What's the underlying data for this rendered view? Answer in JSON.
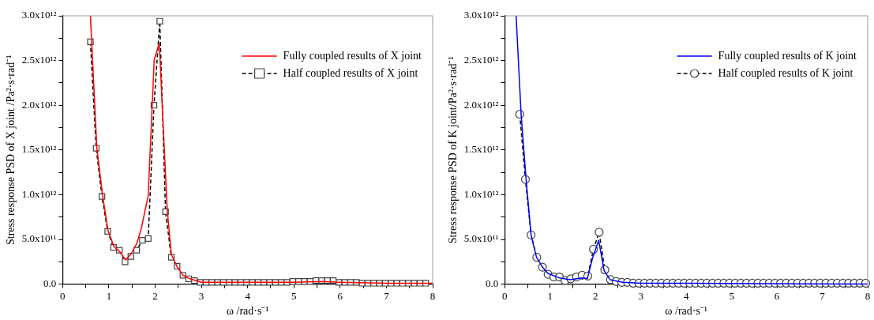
{
  "chart_data": [
    {
      "type": "line",
      "xlabel": "ω /rad·s⁻¹",
      "ylabel": "Stress response PSD of X joint /Pa²·s·rad⁻¹",
      "legend": "top right",
      "grid": false,
      "xlim": [
        0,
        8
      ],
      "xticks": [
        0,
        {
          "value": 0.5,
          "label": null
        },
        1,
        {
          "value": 1.5,
          "label": null
        },
        2,
        {
          "value": 2.5,
          "label": null
        },
        3,
        {
          "value": 3.5,
          "label": null
        },
        4,
        {
          "value": 4.5,
          "label": null
        },
        5,
        {
          "value": 5.5,
          "label": null
        },
        6,
        {
          "value": 6.5,
          "label": null
        },
        7,
        {
          "value": 7.5,
          "label": null
        },
        8
      ],
      "ylim": [
        0,
        3000000000000.0
      ],
      "yticks": [
        {
          "value": 0,
          "label": "0.0"
        },
        {
          "value": 250000000000.0,
          "label": null
        },
        {
          "value": 500000000000.0,
          "label": "5.0x10¹¹"
        },
        {
          "value": 750000000000.0,
          "label": null
        },
        {
          "value": 1000000000000.0,
          "label": "1.0x10¹²"
        },
        {
          "value": 1250000000000.0,
          "label": null
        },
        {
          "value": 1500000000000.0,
          "label": "1.5x10¹²"
        },
        {
          "value": 1750000000000.0,
          "label": null
        },
        {
          "value": 2000000000000.0,
          "label": "2.0x10¹²"
        },
        {
          "value": 2250000000000.0,
          "label": null
        },
        {
          "value": 2500000000000.0,
          "label": "2.5x10¹²"
        },
        {
          "value": 2750000000000.0,
          "label": null
        },
        {
          "value": 3000000000000.0,
          "label": "3.0x10¹²"
        }
      ],
      "series": [
        {
          "name": "Fully coupled results of X joint",
          "color": "#ff0000",
          "marker": "none",
          "line_style": "solid",
          "x": [
            0.6,
            0.74,
            0.87,
            0.98,
            1.11,
            1.24,
            1.36,
            1.47,
            1.6,
            1.7,
            1.85,
            1.98,
            2.09,
            2.26,
            2.35,
            2.47,
            2.6,
            2.75,
            3.0,
            4.0,
            5.0,
            5.6,
            6.0,
            7.0,
            8.0
          ],
          "values": [
            3000000000000.0,
            1520000000000.0,
            970000000000.0,
            600000000000.0,
            420000000000.0,
            360000000000.0,
            270000000000.0,
            330000000000.0,
            450000000000.0,
            620000000000.0,
            990000000000.0,
            2510000000000.0,
            2690000000000.0,
            840000000000.0,
            330000000000.0,
            200000000000.0,
            100000000000.0,
            60000000000.0,
            20000000000.0,
            20000000000.0,
            20000000000.0,
            30000000000.0,
            20000000000.0,
            10000000000.0,
            10000000000.0
          ]
        },
        {
          "name": "Half coupled results of X joint",
          "color": "#000000",
          "marker": "square",
          "line_style": "dashed",
          "x": [
            0.6,
            0.725,
            0.85,
            0.975,
            1.1,
            1.225,
            1.35,
            1.475,
            1.6,
            1.725,
            1.85,
            1.975,
            2.1,
            2.225,
            2.35,
            2.475,
            2.6,
            2.725,
            2.85,
            2.975,
            3.1,
            3.225,
            3.35,
            3.475,
            3.6,
            3.725,
            3.85,
            3.975,
            4.1,
            4.225,
            4.35,
            4.475,
            4.6,
            4.725,
            4.85,
            4.975,
            5.1,
            5.225,
            5.35,
            5.475,
            5.6,
            5.725,
            5.85,
            5.975,
            6.1,
            6.225,
            6.35,
            6.475,
            6.6,
            6.725,
            6.85,
            6.975,
            7.1,
            7.225,
            7.35,
            7.475,
            7.6,
            7.725,
            7.85
          ],
          "values": [
            2710000000000.0,
            1520000000000.0,
            980000000000.0,
            590000000000.0,
            410000000000.0,
            380000000000.0,
            250000000000.0,
            310000000000.0,
            380000000000.0,
            490000000000.0,
            510000000000.0,
            2000000000000.0,
            2940000000000.0,
            810000000000.0,
            300000000000.0,
            200000000000.0,
            100000000000.0,
            60000000000.0,
            40000000000.0,
            20000000000.0,
            20000000000.0,
            20000000000.0,
            20000000000.0,
            20000000000.0,
            20000000000.0,
            20000000000.0,
            20000000000.0,
            20000000000.0,
            20000000000.0,
            20000000000.0,
            20000000000.0,
            20000000000.0,
            20000000000.0,
            20000000000.0,
            20000000000.0,
            30000000000.0,
            30000000000.0,
            30000000000.0,
            30000000000.0,
            40000000000.0,
            40000000000.0,
            40000000000.0,
            40000000000.0,
            20000000000.0,
            20000000000.0,
            20000000000.0,
            20000000000.0,
            10000000000.0,
            10000000000.0,
            10000000000.0,
            10000000000.0,
            10000000000.0,
            10000000000.0,
            10000000000.0,
            10000000000.0,
            10000000000.0,
            10000000000.0,
            10000000000.0,
            10000000000.0
          ]
        }
      ]
    },
    {
      "type": "line",
      "xlabel": "ω /rad·s⁻¹",
      "ylabel": "Stress response PSD of K joint/Pa²·s·rad⁻¹",
      "legend": "top right",
      "grid": false,
      "xlim": [
        0,
        8
      ],
      "xticks": [
        0,
        {
          "value": 0.5,
          "label": null
        },
        1,
        {
          "value": 1.5,
          "label": null
        },
        2,
        {
          "value": 2.5,
          "label": null
        },
        3,
        {
          "value": 3.5,
          "label": null
        },
        4,
        {
          "value": 4.5,
          "label": null
        },
        5,
        {
          "value": 5.5,
          "label": null
        },
        6,
        {
          "value": 6.5,
          "label": null
        },
        7,
        {
          "value": 7.5,
          "label": null
        },
        8
      ],
      "ylim": [
        0,
        3000000000000.0
      ],
      "yticks": [
        {
          "value": 0,
          "label": "0.0"
        },
        {
          "value": 250000000000.0,
          "label": null
        },
        {
          "value": 500000000000.0,
          "label": "5.0x10¹¹"
        },
        {
          "value": 750000000000.0,
          "label": null
        },
        {
          "value": 1000000000000.0,
          "label": "1.0x10¹²"
        },
        {
          "value": 1250000000000.0,
          "label": null
        },
        {
          "value": 1500000000000.0,
          "label": "1.5x10¹²"
        },
        {
          "value": 1750000000000.0,
          "label": null
        },
        {
          "value": 2000000000000.0,
          "label": "2.0x10¹²"
        },
        {
          "value": 2250000000000.0,
          "label": null
        },
        {
          "value": 2500000000000.0,
          "label": "2.5x10¹²"
        },
        {
          "value": 2750000000000.0,
          "label": null
        },
        {
          "value": 3000000000000.0,
          "label": "3.0x10¹²"
        }
      ],
      "series": [
        {
          "name": "Fully coupled results of K joint",
          "color": "#0000ff",
          "marker": "none",
          "line_style": "solid",
          "x": [
            0.25,
            0.36,
            0.47,
            0.58,
            0.7,
            0.83,
            0.95,
            1.2,
            1.45,
            1.7,
            1.82,
            1.94,
            2.07,
            2.19,
            2.32,
            2.6,
            3.0,
            4.0,
            8.0
          ],
          "values": [
            3000000000000.0,
            1900000000000.0,
            1170000000000.0,
            550000000000.0,
            300000000000.0,
            190000000000.0,
            120000000000.0,
            70000000000.0,
            50000000000.0,
            70000000000.0,
            60000000000.0,
            300000000000.0,
            490000000000.0,
            150000000000.0,
            50000000000.0,
            20000000000.0,
            10000000000.0,
            10000000000.0,
            0
          ]
        },
        {
          "name": "Half coupled results of K joint",
          "color": "#000000",
          "marker": "circle",
          "line_style": "dashed",
          "x": [
            0.33,
            0.455,
            0.58,
            0.705,
            0.83,
            0.955,
            1.08,
            1.205,
            1.33,
            1.455,
            1.58,
            1.705,
            1.83,
            1.955,
            2.08,
            2.205,
            2.33,
            2.455,
            2.58,
            2.705,
            2.83,
            2.955,
            3.08,
            3.205,
            3.33,
            3.455,
            3.58,
            3.705,
            3.83,
            3.955,
            4.08,
            4.205,
            4.33,
            4.455,
            4.58,
            4.705,
            4.83,
            4.955,
            5.08,
            5.205,
            5.33,
            5.455,
            5.58,
            5.705,
            5.83,
            5.955,
            6.08,
            6.205,
            6.33,
            6.455,
            6.58,
            6.705,
            6.83,
            6.955,
            7.08,
            7.205,
            7.33,
            7.455,
            7.58,
            7.705,
            7.83,
            7.955
          ],
          "values": [
            1900000000000.0,
            1170000000000.0,
            550000000000.0,
            300000000000.0,
            190000000000.0,
            110000000000.0,
            80000000000.0,
            80000000000.0,
            40000000000.0,
            60000000000.0,
            80000000000.0,
            100000000000.0,
            90000000000.0,
            390000000000.0,
            580000000000.0,
            160000000000.0,
            50000000000.0,
            30000000000.0,
            20000000000.0,
            20000000000.0,
            10000000000.0,
            10000000000.0,
            10000000000.0,
            10000000000.0,
            10000000000.0,
            10000000000.0,
            10000000000.0,
            10000000000.0,
            10000000000.0,
            10000000000.0,
            10000000000.0,
            10000000000.0,
            10000000000.0,
            10000000000.0,
            10000000000.0,
            10000000000.0,
            10000000000.0,
            10000000000.0,
            10000000000.0,
            10000000000.0,
            10000000000.0,
            10000000000.0,
            10000000000.0,
            10000000000.0,
            10000000000.0,
            10000000000.0,
            10000000000.0,
            10000000000.0,
            10000000000.0,
            10000000000.0,
            10000000000.0,
            10000000000.0,
            10000000000.0,
            10000000000.0,
            10000000000.0,
            10000000000.0,
            10000000000.0,
            10000000000.0,
            10000000000.0,
            10000000000.0,
            10000000000.0,
            10000000000.0
          ]
        }
      ]
    }
  ]
}
